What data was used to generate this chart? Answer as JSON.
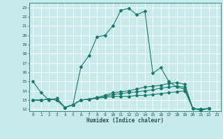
{
  "xlabel": "Humidex (Indice chaleur)",
  "background_color": "#c8eaea",
  "grid_color": "#ffffff",
  "line_color": "#1a7a6e",
  "xlim": [
    -0.5,
    23.5
  ],
  "ylim": [
    11.8,
    23.5
  ],
  "yticks": [
    12,
    13,
    14,
    15,
    16,
    17,
    18,
    19,
    20,
    21,
    22,
    23
  ],
  "xticks": [
    0,
    1,
    2,
    3,
    4,
    5,
    6,
    7,
    8,
    9,
    10,
    11,
    12,
    13,
    14,
    15,
    16,
    17,
    18,
    19,
    20,
    21,
    22,
    23
  ],
  "series": [
    [
      15.0,
      13.8,
      13.0,
      13.2,
      12.2,
      12.5,
      16.6,
      17.8,
      19.8,
      20.0,
      21.0,
      22.7,
      22.9,
      22.2,
      22.6,
      15.9,
      16.5,
      15.0,
      14.4,
      14.2,
      12.1,
      11.9,
      12.1
    ],
    [
      13.0,
      13.0,
      13.1,
      13.0,
      12.2,
      12.5,
      13.0,
      13.1,
      13.2,
      13.3,
      13.4,
      13.4,
      13.4,
      13.5,
      13.5,
      13.6,
      13.7,
      13.8,
      13.9,
      14.0,
      12.1,
      12.0,
      12.1
    ],
    [
      13.0,
      13.0,
      13.1,
      13.0,
      12.2,
      12.5,
      13.0,
      13.1,
      13.2,
      13.4,
      13.6,
      13.7,
      13.8,
      13.9,
      14.0,
      14.1,
      14.3,
      14.4,
      14.5,
      14.4,
      12.1,
      12.0,
      12.1
    ],
    [
      13.0,
      13.0,
      13.1,
      13.0,
      12.2,
      12.5,
      13.0,
      13.1,
      13.3,
      13.5,
      13.8,
      13.9,
      14.0,
      14.2,
      14.4,
      14.5,
      14.6,
      14.8,
      14.9,
      14.7,
      12.1,
      12.0,
      12.1
    ]
  ]
}
